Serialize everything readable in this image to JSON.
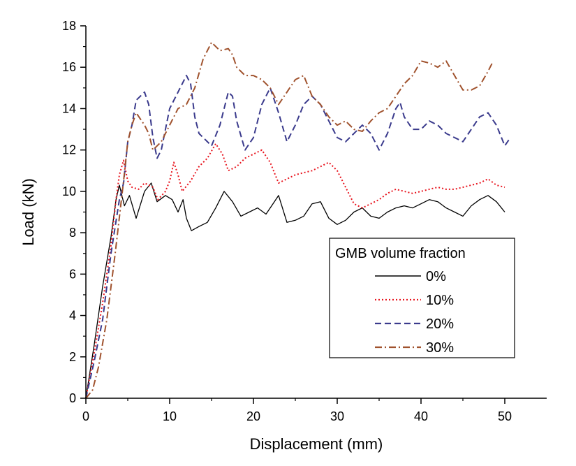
{
  "chart_data": {
    "type": "line",
    "title": "",
    "xlabel": "Displacement (mm)",
    "ylabel": "Load (kN)",
    "xlim": [
      0,
      55
    ],
    "ylim": [
      0,
      18
    ],
    "x_ticks": [
      0,
      10,
      20,
      30,
      40,
      50
    ],
    "y_ticks": [
      0,
      2,
      4,
      6,
      8,
      10,
      12,
      14,
      16,
      18
    ],
    "grid": false,
    "legend": {
      "title": "GMB volume fraction",
      "placement": "lower-right"
    },
    "series": [
      {
        "name": "0%",
        "color": "#000000",
        "dash": "solid",
        "points": [
          [
            0,
            0
          ],
          [
            1,
            2.6
          ],
          [
            2,
            5.4
          ],
          [
            3,
            7.8
          ],
          [
            3.6,
            9.6
          ],
          [
            4,
            10.3
          ],
          [
            4.6,
            9.3
          ],
          [
            5.2,
            9.8
          ],
          [
            6,
            8.7
          ],
          [
            7,
            10.0
          ],
          [
            7.8,
            10.4
          ],
          [
            8.5,
            9.5
          ],
          [
            9.5,
            9.8
          ],
          [
            10.3,
            9.6
          ],
          [
            11,
            9.0
          ],
          [
            11.6,
            9.6
          ],
          [
            12,
            8.7
          ],
          [
            12.6,
            8.1
          ],
          [
            13.5,
            8.3
          ],
          [
            14.5,
            8.5
          ],
          [
            15.5,
            9.2
          ],
          [
            16.5,
            10.0
          ],
          [
            17.5,
            9.5
          ],
          [
            18.5,
            8.8
          ],
          [
            19.5,
            9.0
          ],
          [
            20.5,
            9.2
          ],
          [
            21.5,
            8.9
          ],
          [
            22.5,
            9.5
          ],
          [
            23,
            9.8
          ],
          [
            24,
            8.5
          ],
          [
            25,
            8.6
          ],
          [
            26,
            8.8
          ],
          [
            27,
            9.4
          ],
          [
            28,
            9.5
          ],
          [
            29,
            8.7
          ],
          [
            30,
            8.4
          ],
          [
            31,
            8.6
          ],
          [
            32,
            9.0
          ],
          [
            33,
            9.2
          ],
          [
            34,
            8.8
          ],
          [
            35,
            8.7
          ],
          [
            36,
            9.0
          ],
          [
            37,
            9.2
          ],
          [
            38,
            9.3
          ],
          [
            39,
            9.2
          ],
          [
            40,
            9.4
          ],
          [
            41,
            9.6
          ],
          [
            42,
            9.5
          ],
          [
            43,
            9.2
          ],
          [
            44,
            9.0
          ],
          [
            45,
            8.8
          ],
          [
            46,
            9.3
          ],
          [
            47,
            9.6
          ],
          [
            48,
            9.8
          ],
          [
            49,
            9.5
          ],
          [
            50,
            9.0
          ]
        ]
      },
      {
        "name": "10%",
        "color": "#e8141e",
        "dash": "dot",
        "points": [
          [
            0,
            0
          ],
          [
            1,
            2.2
          ],
          [
            2,
            4.6
          ],
          [
            3,
            7.4
          ],
          [
            3.6,
            9.6
          ],
          [
            4,
            10.8
          ],
          [
            4.5,
            11.5
          ],
          [
            5,
            10.5
          ],
          [
            5.5,
            10.2
          ],
          [
            6.3,
            10.1
          ],
          [
            7,
            10.4
          ],
          [
            8,
            10.2
          ],
          [
            8.6,
            9.6
          ],
          [
            9.5,
            10.0
          ],
          [
            10,
            10.5
          ],
          [
            10.5,
            11.4
          ],
          [
            11,
            10.8
          ],
          [
            11.5,
            10.0
          ],
          [
            12.5,
            10.5
          ],
          [
            13.5,
            11.2
          ],
          [
            14.5,
            11.6
          ],
          [
            15.5,
            12.3
          ],
          [
            16.3,
            11.8
          ],
          [
            17,
            11.0
          ],
          [
            18,
            11.2
          ],
          [
            19,
            11.6
          ],
          [
            20,
            11.8
          ],
          [
            21,
            12.0
          ],
          [
            22,
            11.4
          ],
          [
            23,
            10.4
          ],
          [
            24,
            10.6
          ],
          [
            25,
            10.8
          ],
          [
            26,
            10.9
          ],
          [
            27,
            11.0
          ],
          [
            28,
            11.2
          ],
          [
            29,
            11.4
          ],
          [
            30,
            11.0
          ],
          [
            31,
            10.2
          ],
          [
            32,
            9.4
          ],
          [
            33,
            9.2
          ],
          [
            34,
            9.4
          ],
          [
            35,
            9.6
          ],
          [
            36,
            9.9
          ],
          [
            37,
            10.1
          ],
          [
            38,
            10.0
          ],
          [
            39,
            9.9
          ],
          [
            40,
            10.0
          ],
          [
            41,
            10.1
          ],
          [
            42,
            10.2
          ],
          [
            43,
            10.1
          ],
          [
            44,
            10.1
          ],
          [
            45,
            10.2
          ],
          [
            46,
            10.3
          ],
          [
            47,
            10.4
          ],
          [
            48,
            10.6
          ],
          [
            49,
            10.3
          ],
          [
            50,
            10.2
          ]
        ]
      },
      {
        "name": "20%",
        "color": "#3a3a8c",
        "dash": "dash",
        "points": [
          [
            0,
            0
          ],
          [
            1,
            1.8
          ],
          [
            2,
            3.8
          ],
          [
            3,
            7.0
          ],
          [
            4,
            9.6
          ],
          [
            4.5,
            10.4
          ],
          [
            5,
            12.4
          ],
          [
            5.5,
            13.2
          ],
          [
            6,
            14.4
          ],
          [
            7,
            14.8
          ],
          [
            7.5,
            14.2
          ],
          [
            8,
            12.6
          ],
          [
            8.5,
            11.6
          ],
          [
            9,
            12.0
          ],
          [
            9.5,
            13.0
          ],
          [
            10,
            14.0
          ],
          [
            11,
            14.8
          ],
          [
            12,
            15.6
          ],
          [
            12.5,
            15.2
          ],
          [
            13,
            13.6
          ],
          [
            13.5,
            12.8
          ],
          [
            14,
            12.6
          ],
          [
            15,
            12.2
          ],
          [
            16,
            13.2
          ],
          [
            17,
            14.8
          ],
          [
            17.5,
            14.6
          ],
          [
            18,
            13.4
          ],
          [
            19,
            12.0
          ],
          [
            20,
            12.6
          ],
          [
            21,
            14.2
          ],
          [
            22,
            15.0
          ],
          [
            23,
            13.8
          ],
          [
            24,
            12.4
          ],
          [
            25,
            13.2
          ],
          [
            26,
            14.2
          ],
          [
            27,
            14.6
          ],
          [
            28,
            14.2
          ],
          [
            29,
            13.4
          ],
          [
            30,
            12.6
          ],
          [
            31,
            12.4
          ],
          [
            32,
            12.8
          ],
          [
            33,
            13.2
          ],
          [
            34,
            12.8
          ],
          [
            35,
            12.0
          ],
          [
            36,
            12.8
          ],
          [
            37,
            14.0
          ],
          [
            37.5,
            14.3
          ],
          [
            38,
            13.6
          ],
          [
            39,
            13.0
          ],
          [
            40,
            13.0
          ],
          [
            41,
            13.4
          ],
          [
            42,
            13.2
          ],
          [
            43,
            12.8
          ],
          [
            44,
            12.6
          ],
          [
            45,
            12.4
          ],
          [
            46,
            13.0
          ],
          [
            47,
            13.6
          ],
          [
            48,
            13.8
          ],
          [
            49,
            13.2
          ],
          [
            50,
            12.2
          ],
          [
            50.5,
            12.5
          ]
        ]
      },
      {
        "name": "30%",
        "color": "#a0522d",
        "dash": "dashdot",
        "points": [
          [
            0,
            0
          ],
          [
            0.8,
            0.4
          ],
          [
            1.5,
            1.5
          ],
          [
            2.5,
            3.8
          ],
          [
            3.5,
            7.0
          ],
          [
            4.5,
            10.5
          ],
          [
            5,
            12.4
          ],
          [
            5.5,
            13.2
          ],
          [
            6,
            13.8
          ],
          [
            7,
            13.2
          ],
          [
            7.5,
            12.8
          ],
          [
            8,
            12.0
          ],
          [
            9,
            12.4
          ],
          [
            10,
            13.2
          ],
          [
            11,
            14.0
          ],
          [
            12,
            14.2
          ],
          [
            13,
            15.0
          ],
          [
            14,
            16.4
          ],
          [
            15,
            17.2
          ],
          [
            16,
            16.8
          ],
          [
            17,
            16.9
          ],
          [
            17.5,
            16.6
          ],
          [
            18,
            16.0
          ],
          [
            19,
            15.6
          ],
          [
            20,
            15.6
          ],
          [
            21,
            15.4
          ],
          [
            22,
            15.0
          ],
          [
            23,
            14.2
          ],
          [
            24,
            14.8
          ],
          [
            25,
            15.4
          ],
          [
            26,
            15.6
          ],
          [
            27,
            14.6
          ],
          [
            28,
            14.2
          ],
          [
            29,
            13.6
          ],
          [
            30,
            13.2
          ],
          [
            31,
            13.4
          ],
          [
            32,
            13.0
          ],
          [
            33,
            12.9
          ],
          [
            34,
            13.4
          ],
          [
            35,
            13.8
          ],
          [
            36,
            14.0
          ],
          [
            37,
            14.6
          ],
          [
            38,
            15.2
          ],
          [
            39,
            15.6
          ],
          [
            40,
            16.3
          ],
          [
            41,
            16.2
          ],
          [
            42,
            16.0
          ],
          [
            43,
            16.3
          ],
          [
            44,
            15.6
          ],
          [
            45,
            14.9
          ],
          [
            46,
            14.9
          ],
          [
            47,
            15.1
          ],
          [
            48,
            15.8
          ],
          [
            48.5,
            16.2
          ]
        ]
      }
    ]
  }
}
